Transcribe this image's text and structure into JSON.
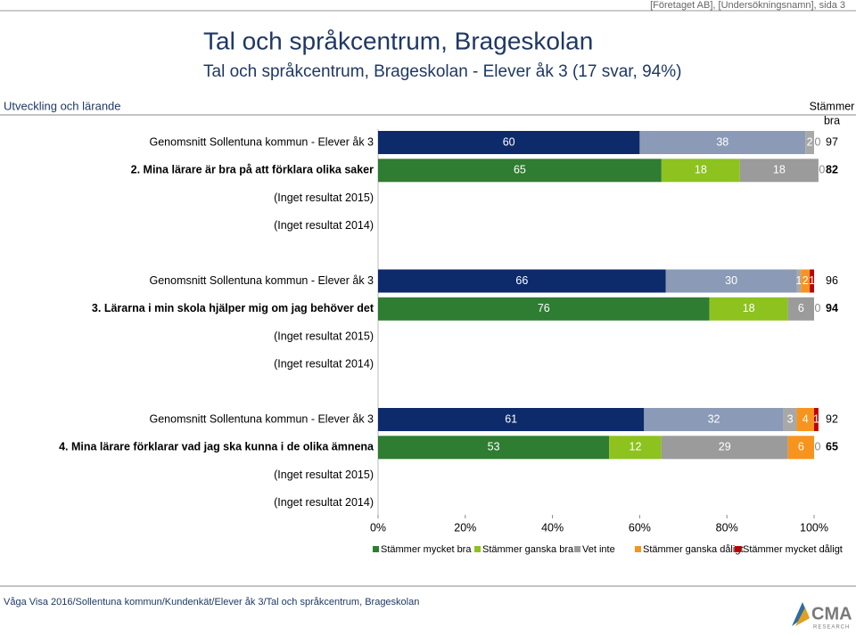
{
  "header": {
    "corner": "[Företaget AB], [Undersökningsnamn], sida 3",
    "title": "Tal och språkcentrum, Brageskolan",
    "subtitle": "Tal och språkcentrum, Brageskolan - Elever åk 3 (17 svar, 94%)",
    "section": "Utveckling och lärande"
  },
  "chart_data": {
    "type": "bar",
    "orientation": "horizontal",
    "stacked": true,
    "xlim": [
      0,
      100
    ],
    "xticks": [
      {
        "value": 0,
        "label": "0%"
      },
      {
        "value": 20,
        "label": "20%"
      },
      {
        "value": 40,
        "label": "40%"
      },
      {
        "value": 60,
        "label": "60%"
      },
      {
        "value": 80,
        "label": "80%"
      },
      {
        "value": 100,
        "label": "100%"
      }
    ],
    "total_header": [
      "Stämmer",
      "bra"
    ],
    "series": [
      {
        "name": "Stämmer mycket bra",
        "color": "#2e7d32",
        "avg_color": "#0d2a6b"
      },
      {
        "name": "Stämmer ganska bra",
        "color": "#8dc21f",
        "avg_color": "#8b9ab6"
      },
      {
        "name": "Vet inte",
        "color": "#9b9b9b",
        "avg_color": "#a8a8a8"
      },
      {
        "name": "Stämmer ganska dåligt",
        "color": "#f7941d",
        "avg_color": "#f7941d"
      },
      {
        "name": "Stämmer mycket dåligt",
        "color": "#c00000",
        "avg_color": "#c00000"
      }
    ],
    "groups": [
      {
        "rows": [
          {
            "label": "Genomsnitt Sollentuna kommun - Elever åk 3",
            "average": true,
            "values": [
              60,
              38,
              2,
              0,
              0
            ],
            "total": 97
          },
          {
            "label": "2. Mina lärare är bra på att förklara olika saker",
            "values": [
              65,
              18,
              18,
              0,
              0
            ],
            "total": 82
          },
          {
            "label": "(Inget resultat 2015)"
          },
          {
            "label": "(Inget resultat 2014)"
          }
        ]
      },
      {
        "rows": [
          {
            "label": "Genomsnitt Sollentuna kommun - Elever åk 3",
            "average": true,
            "values": [
              66,
              30,
              1,
              2,
              1
            ],
            "total": 96
          },
          {
            "label": "3. Lärarna i min skola hjälper mig om jag behöver det",
            "values": [
              76,
              18,
              6,
              0,
              0
            ],
            "total": 94
          },
          {
            "label": "(Inget resultat 2015)"
          },
          {
            "label": "(Inget resultat 2014)"
          }
        ]
      },
      {
        "rows": [
          {
            "label": "Genomsnitt Sollentuna kommun - Elever åk 3",
            "average": true,
            "values": [
              61,
              32,
              3,
              4,
              1
            ],
            "total": 92
          },
          {
            "label": "4. Mina lärare förklarar vad jag ska kunna i de olika ämnena",
            "values": [
              53,
              12,
              29,
              6,
              0
            ],
            "total": 65
          },
          {
            "label": "(Inget resultat 2015)"
          },
          {
            "label": "(Inget resultat 2014)"
          }
        ]
      }
    ]
  },
  "footer": {
    "source": "Våga Visa 2016/Sollentuna kommun/Kundenkät/Elever åk 3/Tal och språkcentrum, Brageskolan",
    "logo": "CMA",
    "logo_sub": "RESEARCH"
  }
}
